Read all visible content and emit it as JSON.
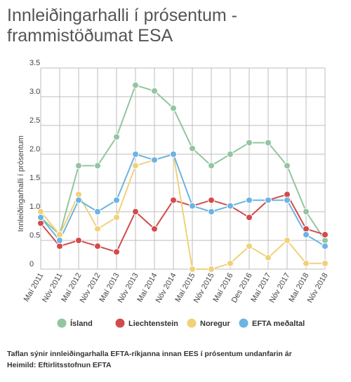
{
  "title_line1": "Innleiðingarhalli í prósentum -",
  "title_line2": "frammistöðumat ESA",
  "footnote": "Taflan sýnir innleiðingarhalla EFTA-ríkjanna innan EES í prósentum undanfarin ár",
  "source": "Heimild: Eftirlitsstofnun EFTA",
  "chart_data": {
    "type": "line",
    "title": "Innleiðingarhalli í prósentum - frammistöðumat ESA",
    "ylabel": "Innleiðingarhalli í prósentum",
    "xlabel": "",
    "ylim": [
      0,
      3.5
    ],
    "yticks": [
      "0",
      "0.5",
      "1.0",
      "1.5",
      "2.0",
      "2.5",
      "3.0",
      "3.5"
    ],
    "grid": true,
    "legend_position": "bottom",
    "categories": [
      "Maí 2011",
      "Nóv 2011",
      "Maí 2012",
      "Nóv 2012",
      "Maí 2013",
      "Nóv 2013",
      "Maí 2014",
      "Nóv 2014",
      "Maí 2015",
      "Nóv 2015",
      "Maí 2016",
      "Des 2016",
      "Maí 2017",
      "Nóv 2017",
      "Maí 2018",
      "Nóv 2018"
    ],
    "series": [
      {
        "name": "Ísland",
        "color": "#93c5a0",
        "values": [
          0.9,
          0.6,
          1.8,
          1.8,
          2.3,
          3.2,
          3.1,
          2.8,
          2.1,
          1.8,
          2.0,
          2.2,
          2.2,
          1.8,
          1.0,
          0.5
        ]
      },
      {
        "name": "Liechtenstein",
        "color": "#d24b4b",
        "values": [
          0.8,
          0.4,
          0.5,
          0.4,
          0.3,
          1.0,
          0.7,
          1.2,
          1.1,
          1.2,
          1.1,
          0.9,
          1.2,
          1.3,
          0.7,
          0.6
        ]
      },
      {
        "name": "Noregur",
        "color": "#f0d17a",
        "values": [
          1.0,
          0.6,
          1.3,
          0.7,
          0.9,
          1.8,
          1.9,
          2.0,
          0.0,
          0.0,
          0.1,
          0.4,
          0.2,
          0.5,
          0.1,
          0.1
        ]
      },
      {
        "name": "EFTA meðaltal",
        "color": "#6cb4e2",
        "values": [
          0.9,
          0.5,
          1.2,
          1.0,
          1.2,
          2.0,
          1.9,
          2.0,
          1.1,
          1.0,
          1.1,
          1.2,
          1.2,
          1.2,
          0.6,
          0.4
        ]
      }
    ]
  }
}
